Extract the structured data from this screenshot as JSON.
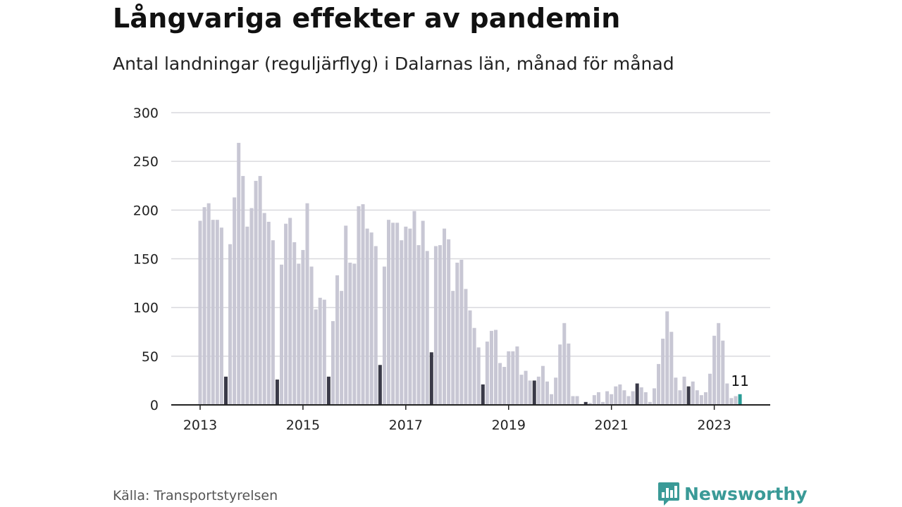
{
  "title": "Långvariga effekter av pandemin",
  "subtitle": "Antal landningar (reguljärflyg) i Dalarnas län, månad för månad",
  "source": "Källa: Transportstyrelsen",
  "brand": {
    "name": "Newsworthy",
    "logo_icon": "newsworthy-chart-bubble-icon"
  },
  "colors": {
    "bar": "#c8c7d4",
    "july": "#3a3a48",
    "latest": "#2a9c96",
    "grid": "#d9d9de",
    "axis": "#222222"
  },
  "chart_data": {
    "type": "bar",
    "title": "Långvariga effekter av pandemin",
    "subtitle": "Antal landningar (reguljärflyg) i Dalarnas län, månad för månad",
    "xlabel": "",
    "ylabel": "",
    "ylim": [
      0,
      300
    ],
    "yticks": [
      "0",
      "50",
      "100",
      "150",
      "200",
      "250",
      "300"
    ],
    "xticks": [
      "2013",
      "2015",
      "2017",
      "2019",
      "2021",
      "2023"
    ],
    "start": "2013-01",
    "end": "2023-07",
    "grid": true,
    "highlight": "July of each year shown in dark; latest month (2023-07) in teal",
    "annotation": "11",
    "values": [
      189,
      203,
      207,
      190,
      190,
      182,
      29,
      165,
      213,
      269,
      235,
      183,
      202,
      230,
      235,
      197,
      188,
      169,
      26,
      144,
      186,
      192,
      167,
      145,
      159,
      207,
      142,
      98,
      110,
      108,
      29,
      86,
      133,
      117,
      184,
      146,
      145,
      204,
      206,
      181,
      177,
      163,
      41,
      142,
      190,
      187,
      187,
      169,
      183,
      181,
      199,
      164,
      189,
      158,
      54,
      163,
      164,
      181,
      170,
      117,
      146,
      149,
      119,
      97,
      79,
      59,
      21,
      65,
      76,
      77,
      43,
      39,
      55,
      55,
      60,
      31,
      35,
      25,
      25,
      29,
      40,
      24,
      11,
      28,
      62,
      84,
      63,
      9,
      9,
      1,
      3,
      2,
      10,
      13,
      3,
      14,
      11,
      19,
      21,
      15,
      9,
      14,
      22,
      18,
      13,
      3,
      17,
      42,
      68,
      96,
      75,
      28,
      15,
      29,
      19,
      24,
      15,
      10,
      13,
      32,
      71,
      84,
      66,
      22,
      7,
      9,
      11
    ]
  }
}
